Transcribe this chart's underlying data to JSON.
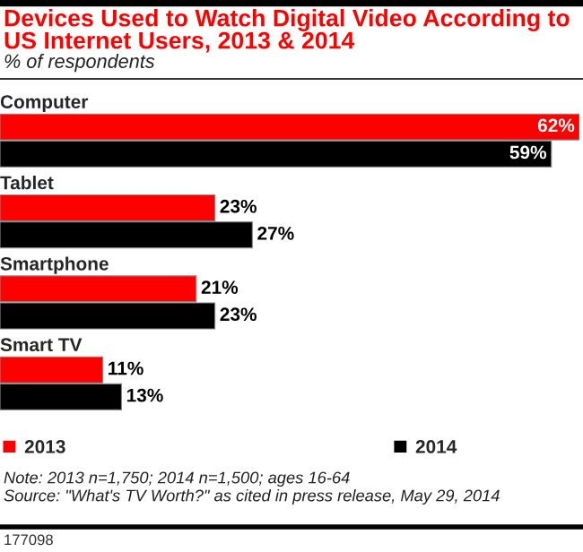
{
  "chart_data": {
    "type": "bar",
    "orientation": "horizontal",
    "title": "Devices Used to Watch Digital Video According to US Internet Users, 2013 & 2014",
    "subtitle": "% of respondents",
    "categories": [
      "Computer",
      "Tablet",
      "Smartphone",
      "Smart TV"
    ],
    "series": [
      {
        "name": "2013",
        "color": "#ff0000",
        "values": [
          62,
          23,
          21,
          11
        ],
        "value_labels": [
          "62%",
          "23%",
          "21%",
          "11%"
        ]
      },
      {
        "name": "2014",
        "color": "#000000",
        "values": [
          59,
          27,
          23,
          13
        ],
        "value_labels": [
          "59%",
          "27%",
          "23%",
          "13%"
        ]
      }
    ],
    "legend": "bottom",
    "annotations": [
      "Note: 2013 n=1,750; 2014 n=1,500; ages 16-64",
      "Source: \"What's TV Worth?\" as cited in press release, May 29, 2014",
      "177098"
    ]
  }
}
